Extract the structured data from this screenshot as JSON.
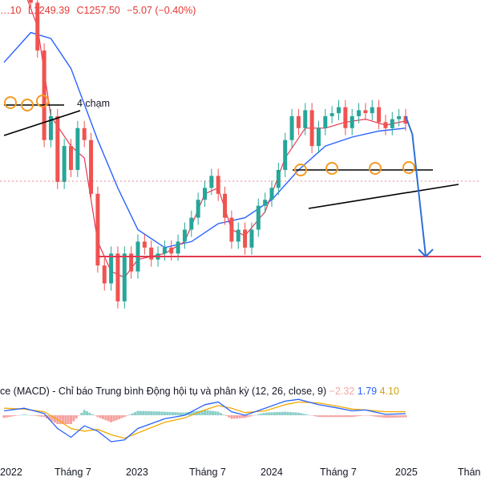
{
  "ohlc": {
    "open": "…10",
    "low": "L1249.39",
    "close": "C1257.50",
    "change": "−5.07 (−0.40%)"
  },
  "annotations": {
    "touch_label": "4 chạm"
  },
  "macd_legend": {
    "title": "ce (MACD) - Chỉ báo Trung bình Động hội tụ và phân kỳ (12, 26, close, 9)",
    "hist_value": "−2.32",
    "macd_value": "1.79",
    "signal_value": "4.10"
  },
  "colors": {
    "up_candle": "#26a69a",
    "down_candle": "#ef5350",
    "ma_fast": "#e53950",
    "ma_slow": "#2962ff",
    "support_line": "#e53950",
    "trend_lines": "#000000",
    "touch_circles": "#f59a23",
    "forecast_arrow": "#2f6fd6",
    "macd_line": "#2962ff",
    "signal_line": "#f2a900"
  },
  "chart_data": {
    "type": "line",
    "x_axis_labels": [
      "2022",
      "Tháng 7",
      "2023",
      "Tháng 7",
      "2024",
      "Tháng 7",
      "2025",
      "Tháng"
    ],
    "price_path": [
      [
        2022.0,
        1480
      ],
      [
        2022.05,
        1490
      ],
      [
        2022.1,
        1500
      ],
      [
        2022.15,
        1495
      ],
      [
        2022.2,
        1460
      ],
      [
        2022.25,
        1380
      ],
      [
        2022.3,
        1230
      ],
      [
        2022.35,
        1270
      ],
      [
        2022.4,
        1160
      ],
      [
        2022.45,
        1220
      ],
      [
        2022.5,
        1180
      ],
      [
        2022.55,
        1250
      ],
      [
        2022.6,
        1230
      ],
      [
        2022.65,
        1140
      ],
      [
        2022.7,
        1020
      ],
      [
        2022.75,
        990
      ],
      [
        2022.8,
        1040
      ],
      [
        2022.85,
        960
      ],
      [
        2022.9,
        1040
      ],
      [
        2022.95,
        1010
      ],
      [
        2023.0,
        1060
      ],
      [
        2023.05,
        1050
      ],
      [
        2023.1,
        1030
      ],
      [
        2023.15,
        1040
      ],
      [
        2023.2,
        1050
      ],
      [
        2023.25,
        1040
      ],
      [
        2023.3,
        1060
      ],
      [
        2023.35,
        1080
      ],
      [
        2023.4,
        1100
      ],
      [
        2023.45,
        1130
      ],
      [
        2023.5,
        1150
      ],
      [
        2023.55,
        1170
      ],
      [
        2023.6,
        1140
      ],
      [
        2023.65,
        1100
      ],
      [
        2023.7,
        1060
      ],
      [
        2023.75,
        1080
      ],
      [
        2023.8,
        1050
      ],
      [
        2023.85,
        1080
      ],
      [
        2023.9,
        1120
      ],
      [
        2023.95,
        1130
      ],
      [
        2024.0,
        1150
      ],
      [
        2024.05,
        1180
      ],
      [
        2024.1,
        1230
      ],
      [
        2024.15,
        1270
      ],
      [
        2024.2,
        1250
      ],
      [
        2024.25,
        1280
      ],
      [
        2024.3,
        1220
      ],
      [
        2024.35,
        1250
      ],
      [
        2024.4,
        1270
      ],
      [
        2024.45,
        1275
      ],
      [
        2024.5,
        1285
      ],
      [
        2024.55,
        1250
      ],
      [
        2024.6,
        1270
      ],
      [
        2024.65,
        1280
      ],
      [
        2024.7,
        1275
      ],
      [
        2024.75,
        1285
      ],
      [
        2024.8,
        1260
      ],
      [
        2024.85,
        1250
      ],
      [
        2024.9,
        1265
      ],
      [
        2024.95,
        1270
      ],
      [
        2025.0,
        1257.5
      ]
    ],
    "ma_fast_path": [
      [
        2022.0,
        1470
      ],
      [
        2022.15,
        1480
      ],
      [
        2022.25,
        1420
      ],
      [
        2022.35,
        1270
      ],
      [
        2022.5,
        1220
      ],
      [
        2022.6,
        1200
      ],
      [
        2022.7,
        1060
      ],
      [
        2022.8,
        1010
      ],
      [
        2022.9,
        1000
      ],
      [
        2023.0,
        1030
      ],
      [
        2023.2,
        1040
      ],
      [
        2023.35,
        1060
      ],
      [
        2023.5,
        1140
      ],
      [
        2023.6,
        1150
      ],
      [
        2023.7,
        1080
      ],
      [
        2023.8,
        1070
      ],
      [
        2023.95,
        1110
      ],
      [
        2024.1,
        1200
      ],
      [
        2024.25,
        1250
      ],
      [
        2024.4,
        1250
      ],
      [
        2024.55,
        1260
      ],
      [
        2024.7,
        1265
      ],
      [
        2024.85,
        1255
      ],
      [
        2025.0,
        1262
      ]
    ],
    "ma_slow_path": [
      [
        2022.0,
        1360
      ],
      [
        2022.2,
        1410
      ],
      [
        2022.35,
        1400
      ],
      [
        2022.5,
        1350
      ],
      [
        2022.7,
        1230
      ],
      [
        2022.85,
        1150
      ],
      [
        2023.0,
        1080
      ],
      [
        2023.2,
        1050
      ],
      [
        2023.4,
        1060
      ],
      [
        2023.6,
        1090
      ],
      [
        2023.8,
        1100
      ],
      [
        2024.0,
        1130
      ],
      [
        2024.2,
        1180
      ],
      [
        2024.4,
        1220
      ],
      [
        2024.6,
        1235
      ],
      [
        2024.8,
        1245
      ],
      [
        2025.0,
        1250
      ]
    ],
    "support_level": 1035,
    "resistance_level": 1290,
    "forecast_path": [
      [
        2025.0,
        1270
      ],
      [
        2025.05,
        1240
      ],
      [
        2025.15,
        1035
      ]
    ],
    "macd": {
      "x_range": [
        2021.95,
        2025.4
      ],
      "macd": [
        [
          2022.0,
          5
        ],
        [
          2022.15,
          8
        ],
        [
          2022.3,
          2
        ],
        [
          2022.4,
          -15
        ],
        [
          2022.5,
          -25
        ],
        [
          2022.6,
          -12
        ],
        [
          2022.7,
          -18
        ],
        [
          2022.8,
          -30
        ],
        [
          2022.9,
          -28
        ],
        [
          2023.0,
          -15
        ],
        [
          2023.2,
          -4
        ],
        [
          2023.35,
          0
        ],
        [
          2023.5,
          12
        ],
        [
          2023.6,
          15
        ],
        [
          2023.7,
          4
        ],
        [
          2023.8,
          0
        ],
        [
          2023.95,
          8
        ],
        [
          2024.1,
          16
        ],
        [
          2024.2,
          18
        ],
        [
          2024.35,
          12
        ],
        [
          2024.5,
          8
        ],
        [
          2024.6,
          5
        ],
        [
          2024.7,
          6
        ],
        [
          2024.85,
          1
        ],
        [
          2025.0,
          1.79
        ]
      ],
      "signal": [
        [
          2022.0,
          8
        ],
        [
          2022.15,
          7
        ],
        [
          2022.3,
          4
        ],
        [
          2022.4,
          -5
        ],
        [
          2022.5,
          -15
        ],
        [
          2022.6,
          -18
        ],
        [
          2022.7,
          -16
        ],
        [
          2022.8,
          -22
        ],
        [
          2022.9,
          -26
        ],
        [
          2023.0,
          -20
        ],
        [
          2023.2,
          -8
        ],
        [
          2023.35,
          -3
        ],
        [
          2023.5,
          6
        ],
        [
          2023.6,
          11
        ],
        [
          2023.7,
          8
        ],
        [
          2023.8,
          3
        ],
        [
          2023.95,
          5
        ],
        [
          2024.1,
          12
        ],
        [
          2024.2,
          15
        ],
        [
          2024.35,
          14
        ],
        [
          2024.5,
          10
        ],
        [
          2024.6,
          7
        ],
        [
          2024.7,
          6
        ],
        [
          2024.85,
          4
        ],
        [
          2025.0,
          4.1
        ]
      ]
    }
  }
}
